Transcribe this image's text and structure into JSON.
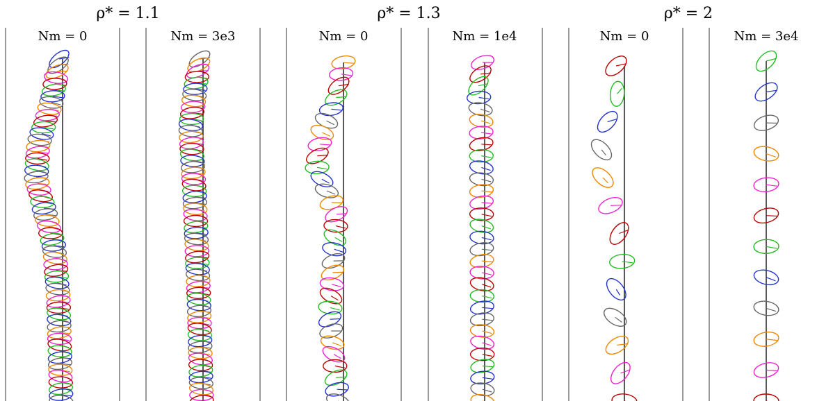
{
  "palette": [
    "#22bb22",
    "#2233cc",
    "#666666",
    "#ee8800",
    "#ee22cc",
    "#bb0000"
  ],
  "groups": [
    {
      "title": "ρ* = 1.1",
      "panels": [
        {
          "title": "Nm = 0"
        },
        {
          "title": "Nm = 3e3"
        }
      ]
    },
    {
      "title": "ρ* = 1.3",
      "panels": [
        {
          "title": "Nm = 0"
        },
        {
          "title": "Nm = 1e4"
        }
      ]
    },
    {
      "title": "ρ* = 2",
      "panels": [
        {
          "title": "Nm = 0"
        },
        {
          "title": "Nm = 3e4"
        }
      ]
    }
  ]
}
